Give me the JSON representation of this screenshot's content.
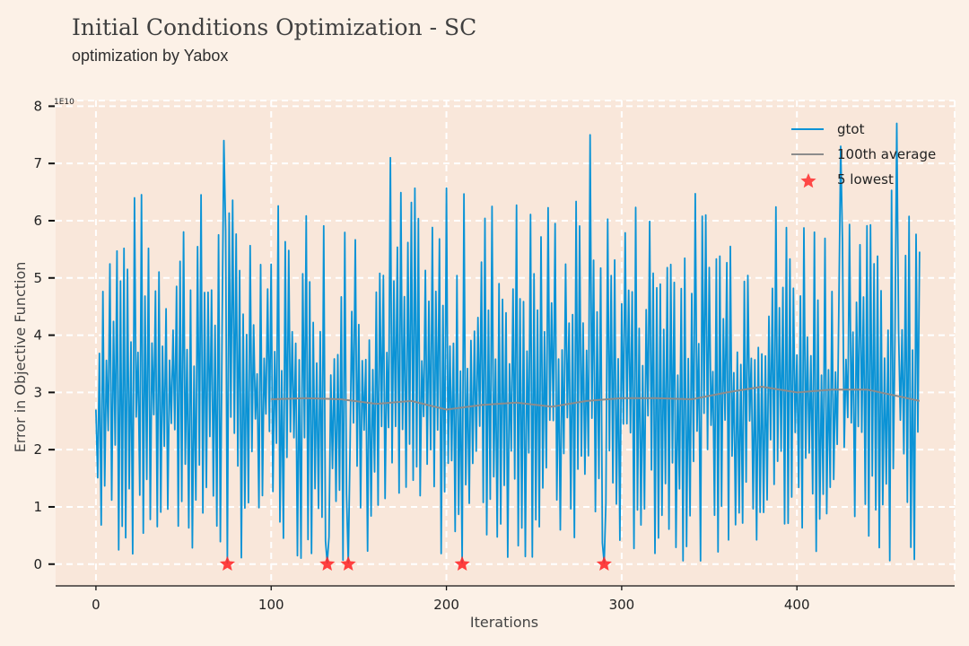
{
  "header": {
    "title": "Initial Conditions Optimization - SC",
    "subtitle": "optimization by Yabox"
  },
  "colors": {
    "background": "#fcf1e7",
    "plot_background": "#f9e7da",
    "series_gtot": "#0a93d6",
    "series_average": "#8c8c8c",
    "markers": "#ff2b2b"
  },
  "chart_data": {
    "type": "line",
    "xlabel": "Iterations",
    "ylabel": "Error in Objective Function",
    "y_offset_label": "1E10",
    "xlim": [
      -23,
      490
    ],
    "ylim": [
      -0.38,
      8.1
    ],
    "x_ticks": [
      "0",
      "100",
      "200",
      "300",
      "400"
    ],
    "x_tick_values": [
      0,
      100,
      200,
      300,
      400
    ],
    "y_ticks": [
      "0",
      "1",
      "2",
      "3",
      "4",
      "5",
      "6",
      "7",
      "8"
    ],
    "y_tick_values": [
      0,
      1,
      2,
      3,
      4,
      5,
      6,
      7,
      8
    ],
    "grid": true,
    "legend_position": "top-right",
    "series": [
      {
        "name": "gtot",
        "x_range": [
          0,
          470
        ],
        "values_summary": "oscillating between ~0 and ~7.5 (x1E10), mean ~2.9",
        "peak_values": [
          {
            "x": 73,
            "y": 7.4
          },
          {
            "x": 168,
            "y": 7.1
          },
          {
            "x": 282,
            "y": 7.5
          },
          {
            "x": 425,
            "y": 7.3
          },
          {
            "x": 457,
            "y": 7.7
          }
        ]
      },
      {
        "name": "100th average",
        "x": [
          100,
          120,
          140,
          160,
          180,
          200,
          220,
          240,
          260,
          280,
          300,
          320,
          340,
          360,
          380,
          400,
          420,
          440,
          460,
          470
        ],
        "values": [
          2.88,
          2.9,
          2.88,
          2.8,
          2.85,
          2.7,
          2.78,
          2.82,
          2.75,
          2.85,
          2.9,
          2.9,
          2.88,
          3.0,
          3.1,
          3.0,
          3.05,
          3.05,
          2.92,
          2.85
        ]
      },
      {
        "name": "5 lowest",
        "x": [
          75,
          132,
          144,
          209,
          290
        ],
        "values": [
          0.0,
          0.0,
          0.0,
          0.0,
          0.0
        ]
      }
    ]
  }
}
